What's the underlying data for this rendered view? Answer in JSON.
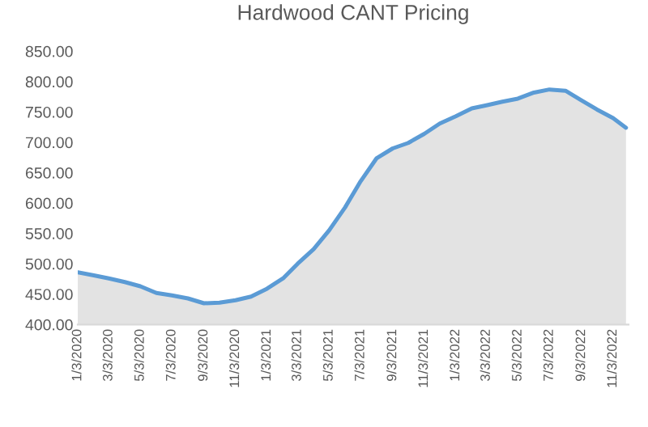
{
  "chart_data": {
    "type": "area",
    "title": "Hardwood CANT Pricing",
    "x": [
      "2020-01-03",
      "2020-02-03",
      "2020-03-03",
      "2020-04-03",
      "2020-05-03",
      "2020-06-03",
      "2020-07-03",
      "2020-08-03",
      "2020-09-03",
      "2020-10-03",
      "2020-11-03",
      "2020-12-03",
      "2021-01-03",
      "2021-02-03",
      "2021-03-03",
      "2021-04-03",
      "2021-05-03",
      "2021-06-03",
      "2021-07-03",
      "2021-08-03",
      "2021-09-03",
      "2021-10-03",
      "2021-11-03",
      "2021-12-03",
      "2022-01-03",
      "2022-02-03",
      "2022-03-03",
      "2022-04-03",
      "2022-05-03",
      "2022-06-03",
      "2022-07-03",
      "2022-08-03",
      "2022-09-03",
      "2022-10-03",
      "2022-11-03",
      "2022-11-28"
    ],
    "series": [
      {
        "color": "#5b9bd5",
        "values": [
          486,
          481,
          476,
          470,
          463,
          452,
          448,
          443,
          435,
          436,
          440,
          446,
          459,
          476,
          500,
          524,
          555,
          593,
          636,
          674,
          690,
          699,
          714,
          731,
          743,
          756,
          761,
          767,
          772,
          782,
          787,
          785,
          769,
          754,
          740,
          724
        ]
      }
    ],
    "xlim": [
      "2020-01-03",
      "2022-12-03"
    ],
    "xticks": [
      {
        "value": "2020-01-03",
        "label": "1/3/2020"
      },
      {
        "value": "2020-03-03",
        "label": "3/3/2020"
      },
      {
        "value": "2020-05-03",
        "label": "5/3/2020"
      },
      {
        "value": "2020-07-03",
        "label": "7/3/2020"
      },
      {
        "value": "2020-09-03",
        "label": "9/3/2020"
      },
      {
        "value": "2020-11-03",
        "label": "11/3/2020"
      },
      {
        "value": "2021-01-03",
        "label": "1/3/2021"
      },
      {
        "value": "2021-03-03",
        "label": "3/3/2021"
      },
      {
        "value": "2021-05-03",
        "label": "5/3/2021"
      },
      {
        "value": "2021-07-03",
        "label": "7/3/2021"
      },
      {
        "value": "2021-09-03",
        "label": "9/3/2021"
      },
      {
        "value": "2021-11-03",
        "label": "11/3/2021"
      },
      {
        "value": "2022-01-03",
        "label": "1/3/2022"
      },
      {
        "value": "2022-03-03",
        "label": "3/3/2022"
      },
      {
        "value": "2022-05-03",
        "label": "5/3/2022"
      },
      {
        "value": "2022-07-03",
        "label": "7/3/2022"
      },
      {
        "value": "2022-09-03",
        "label": "9/3/2022"
      },
      {
        "value": "2022-11-03",
        "label": "11/3/2022"
      }
    ],
    "ylim": [
      400,
      850
    ],
    "yticks": [
      {
        "value": 400,
        "label": "400.00"
      },
      {
        "value": 450,
        "label": "450.00"
      },
      {
        "value": 500,
        "label": "500.00"
      },
      {
        "value": 550,
        "label": "550.00"
      },
      {
        "value": 600,
        "label": "600.00"
      },
      {
        "value": 650,
        "label": "650.00"
      },
      {
        "value": 700,
        "label": "700.00"
      },
      {
        "value": 750,
        "label": "750.00"
      },
      {
        "value": 800,
        "label": "800.00"
      },
      {
        "value": 850,
        "label": "850.00"
      }
    ],
    "grid": false,
    "marker": "none",
    "line_style": "solid"
  }
}
